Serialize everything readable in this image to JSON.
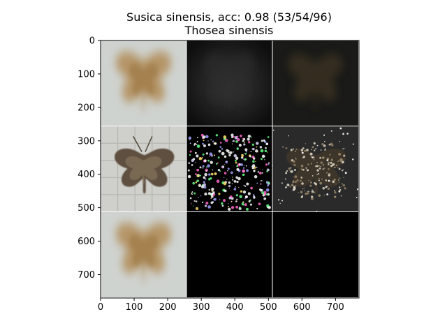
{
  "title_line1": "Susica sinensis, acc: 0.98 (53/54/96)",
  "title_line2": "Thosea sinensis",
  "chart_data": {
    "type": "heatmap",
    "title": "Susica sinensis, acc: 0.98 (53/54/96)\nThosea sinensis",
    "xlabel": "",
    "ylabel": "",
    "xlim": [
      0,
      770
    ],
    "ylim": [
      770,
      0
    ],
    "x_ticks": [
      0,
      100,
      200,
      300,
      400,
      500,
      600,
      700
    ],
    "y_ticks": [
      0,
      100,
      200,
      300,
      400,
      500,
      600,
      700
    ],
    "grid": {
      "rows": 3,
      "cols": 3,
      "tile_size": 256,
      "tiles": [
        {
          "row": 0,
          "col": 0,
          "content": "blurred-moth-average",
          "background": "#d9dbd8"
        },
        {
          "row": 0,
          "col": 1,
          "content": "dark-gradient-map",
          "background": "#1b1b1b"
        },
        {
          "row": 0,
          "col": 2,
          "content": "dark-masked-moth",
          "background": "#1c1c1a"
        },
        {
          "row": 1,
          "col": 0,
          "content": "moth-photo",
          "background": "#d4d4cf"
        },
        {
          "row": 1,
          "col": 1,
          "content": "speckle-attribution",
          "background": "#000000"
        },
        {
          "row": 1,
          "col": 2,
          "content": "masked-moth-photo",
          "background": "#2c2c2c"
        },
        {
          "row": 2,
          "col": 0,
          "content": "blurred-moth-average",
          "background": "#d9dbd8"
        },
        {
          "row": 2,
          "col": 1,
          "content": "black",
          "background": "#000000"
        },
        {
          "row": 2,
          "col": 2,
          "content": "black",
          "background": "#000000"
        }
      ]
    }
  }
}
